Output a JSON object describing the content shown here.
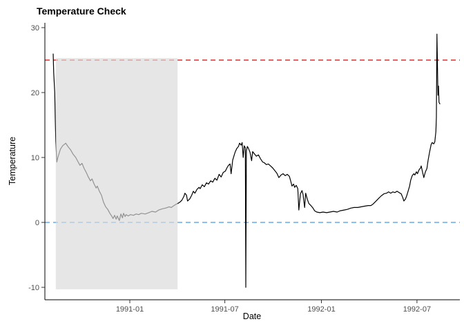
{
  "page": {
    "background": "#ffffff"
  },
  "chart_data": {
    "type": "line",
    "title": "Temperature Check",
    "xlabel": "Date",
    "ylabel": "Temperature",
    "grid": "off",
    "legend": "none",
    "x_axis": {
      "start_date": "1990-08-08",
      "unit": "days since start_date",
      "ticks": [
        {
          "label": "1991-01",
          "day": 146
        },
        {
          "label": "1991-07",
          "day": 327
        },
        {
          "label": "1992-01",
          "day": 511
        },
        {
          "label": "1992-07",
          "day": 693
        }
      ]
    },
    "y_axis": {
      "ticks": [
        30,
        20,
        10,
        0,
        -10
      ],
      "range": [
        -11.9,
        30.7
      ]
    },
    "reference_lines": [
      {
        "name": "threshold-25",
        "y": 25,
        "color": "#e00000",
        "style": "dashed"
      },
      {
        "name": "zero-line",
        "y": 0,
        "color": "#3d9af0",
        "style": "dashed"
      }
    ],
    "shaded_region": {
      "day_start": 5,
      "day_end": 237,
      "y_min": -10.3,
      "y_max": 25.3,
      "fill": "#d9d9d9",
      "opacity": 0.67
    },
    "series": [
      {
        "name": "temperature",
        "color": "#000000",
        "points": [
          [
            0,
            26.0
          ],
          [
            1,
            23.0
          ],
          [
            3,
            20.0
          ],
          [
            4,
            16.0
          ],
          [
            5,
            12.5
          ],
          [
            7,
            9.3
          ],
          [
            9,
            10.0
          ],
          [
            12,
            10.8
          ],
          [
            14,
            11.3
          ],
          [
            18,
            11.8
          ],
          [
            24,
            12.2
          ],
          [
            28,
            11.7
          ],
          [
            33,
            11.2
          ],
          [
            38,
            10.5
          ],
          [
            43,
            10.0
          ],
          [
            47,
            9.4
          ],
          [
            51,
            8.8
          ],
          [
            55,
            9.1
          ],
          [
            59,
            8.3
          ],
          [
            63,
            7.7
          ],
          [
            67,
            7.0
          ],
          [
            71,
            6.4
          ],
          [
            74,
            6.7
          ],
          [
            78,
            5.9
          ],
          [
            82,
            5.3
          ],
          [
            84,
            5.6
          ],
          [
            88,
            4.8
          ],
          [
            92,
            4.2
          ],
          [
            96,
            3.1
          ],
          [
            100,
            2.4
          ],
          [
            104,
            2.0
          ],
          [
            108,
            1.4
          ],
          [
            112,
            0.9
          ],
          [
            114,
            0.6
          ],
          [
            117,
            1.1
          ],
          [
            120,
            0.5
          ],
          [
            122,
            1.0
          ],
          [
            126,
            0.3
          ],
          [
            129,
            1.3
          ],
          [
            132,
            0.7
          ],
          [
            134,
            1.4
          ],
          [
            137,
            0.9
          ],
          [
            139,
            1.2
          ],
          [
            143,
            1.0
          ],
          [
            147,
            1.2
          ],
          [
            153,
            1.1
          ],
          [
            158,
            1.3
          ],
          [
            163,
            1.2
          ],
          [
            168,
            1.4
          ],
          [
            175,
            1.3
          ],
          [
            182,
            1.5
          ],
          [
            188,
            1.7
          ],
          [
            195,
            1.6
          ],
          [
            201,
            1.9
          ],
          [
            208,
            2.1
          ],
          [
            214,
            2.2
          ],
          [
            221,
            2.4
          ],
          [
            225,
            2.3
          ],
          [
            230,
            2.6
          ],
          [
            234,
            2.8
          ],
          [
            237,
            2.9
          ],
          [
            241,
            3.1
          ],
          [
            245,
            3.4
          ],
          [
            249,
            4.0
          ],
          [
            251,
            4.5
          ],
          [
            254,
            4.2
          ],
          [
            256,
            3.3
          ],
          [
            260,
            3.6
          ],
          [
            264,
            4.2
          ],
          [
            267,
            4.8
          ],
          [
            270,
            4.5
          ],
          [
            274,
            5.1
          ],
          [
            278,
            5.4
          ],
          [
            280,
            5.2
          ],
          [
            284,
            5.8
          ],
          [
            288,
            5.5
          ],
          [
            292,
            6.1
          ],
          [
            296,
            5.9
          ],
          [
            300,
            6.4
          ],
          [
            304,
            6.2
          ],
          [
            308,
            6.8
          ],
          [
            312,
            6.5
          ],
          [
            316,
            7.4
          ],
          [
            320,
            7.0
          ],
          [
            324,
            7.7
          ],
          [
            328,
            7.9
          ],
          [
            331,
            8.4
          ],
          [
            334,
            8.8
          ],
          [
            337,
            9.0
          ],
          [
            339,
            7.5
          ],
          [
            342,
            9.6
          ],
          [
            345,
            10.4
          ],
          [
            347,
            10.9
          ],
          [
            350,
            11.4
          ],
          [
            353,
            11.7
          ],
          [
            355,
            12.2
          ],
          [
            358,
            11.9
          ],
          [
            360,
            12.3
          ],
          [
            362,
            10.0
          ],
          [
            364,
            11.8
          ],
          [
            366,
            11.5
          ],
          [
            367,
            -10.0
          ],
          [
            368,
            11.0
          ],
          [
            370,
            11.7
          ],
          [
            372,
            11.4
          ],
          [
            375,
            10.8
          ],
          [
            378,
            9.5
          ],
          [
            380,
            10.9
          ],
          [
            383,
            10.6
          ],
          [
            387,
            10.2
          ],
          [
            391,
            10.4
          ],
          [
            395,
            9.8
          ],
          [
            399,
            9.3
          ],
          [
            402,
            9.2
          ],
          [
            406,
            8.9
          ],
          [
            410,
            9.0
          ],
          [
            414,
            8.7
          ],
          [
            418,
            8.4
          ],
          [
            422,
            8.0
          ],
          [
            426,
            7.6
          ],
          [
            430,
            6.9
          ],
          [
            434,
            7.3
          ],
          [
            438,
            7.5
          ],
          [
            442,
            7.2
          ],
          [
            446,
            7.4
          ],
          [
            450,
            7.1
          ],
          [
            452,
            6.5
          ],
          [
            455,
            5.6
          ],
          [
            458,
            5.9
          ],
          [
            460,
            5.4
          ],
          [
            463,
            5.7
          ],
          [
            466,
            5.2
          ],
          [
            468,
            1.9
          ],
          [
            471,
            4.4
          ],
          [
            474,
            4.9
          ],
          [
            476,
            4.3
          ],
          [
            479,
            2.3
          ],
          [
            481,
            4.5
          ],
          [
            484,
            3.6
          ],
          [
            487,
            2.9
          ],
          [
            491,
            2.6
          ],
          [
            495,
            2.2
          ],
          [
            498,
            1.8
          ],
          [
            502,
            1.6
          ],
          [
            508,
            1.5
          ],
          [
            514,
            1.6
          ],
          [
            521,
            1.5
          ],
          [
            527,
            1.6
          ],
          [
            534,
            1.7
          ],
          [
            541,
            1.6
          ],
          [
            547,
            1.8
          ],
          [
            554,
            1.9
          ],
          [
            560,
            2.0
          ],
          [
            567,
            2.2
          ],
          [
            573,
            2.3
          ],
          [
            580,
            2.3
          ],
          [
            587,
            2.4
          ],
          [
            593,
            2.5
          ],
          [
            600,
            2.6
          ],
          [
            605,
            2.6
          ],
          [
            609,
            2.8
          ],
          [
            614,
            3.2
          ],
          [
            620,
            3.7
          ],
          [
            625,
            4.1
          ],
          [
            630,
            4.4
          ],
          [
            635,
            4.5
          ],
          [
            639,
            4.7
          ],
          [
            643,
            4.5
          ],
          [
            647,
            4.7
          ],
          [
            651,
            4.6
          ],
          [
            655,
            4.8
          ],
          [
            659,
            4.6
          ],
          [
            663,
            4.4
          ],
          [
            666,
            3.8
          ],
          [
            668,
            3.3
          ],
          [
            671,
            3.6
          ],
          [
            673,
            4.0
          ],
          [
            676,
            4.8
          ],
          [
            679,
            5.6
          ],
          [
            681,
            6.5
          ],
          [
            684,
            7.2
          ],
          [
            687,
            7.5
          ],
          [
            689,
            7.3
          ],
          [
            692,
            7.8
          ],
          [
            694,
            7.5
          ],
          [
            697,
            8.1
          ],
          [
            700,
            8.4
          ],
          [
            701,
            8.7
          ],
          [
            704,
            7.6
          ],
          [
            706,
            6.9
          ],
          [
            709,
            7.8
          ],
          [
            712,
            8.3
          ],
          [
            714,
            9.5
          ],
          [
            717,
            10.8
          ],
          [
            720,
            12.0
          ],
          [
            722,
            12.3
          ],
          [
            725,
            12.1
          ],
          [
            727,
            12.4
          ],
          [
            729,
            14.0
          ],
          [
            730,
            16.2
          ],
          [
            731,
            29.0
          ],
          [
            733,
            19.6
          ],
          [
            734,
            21.0
          ],
          [
            735,
            18.5
          ],
          [
            737,
            18.2
          ]
        ]
      }
    ]
  }
}
